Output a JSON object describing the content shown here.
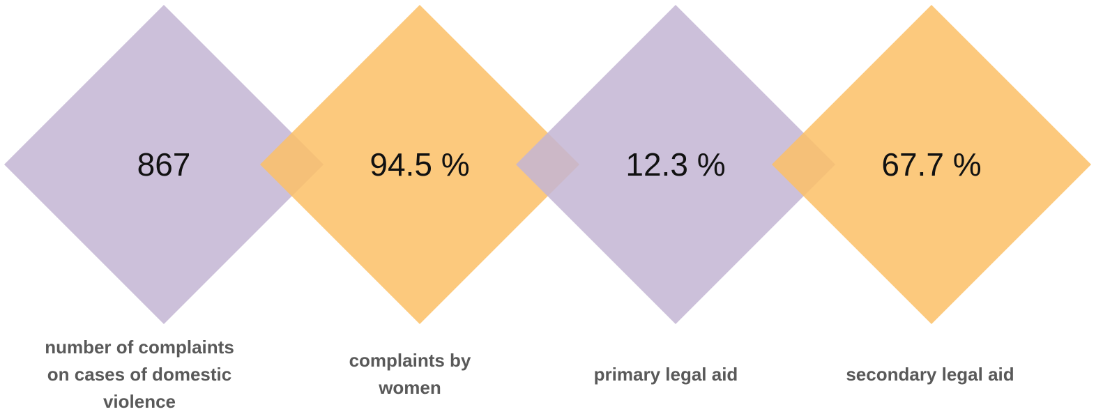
{
  "items": [
    {
      "value": "867",
      "caption": "number of complaints on cases of domestic violence"
    },
    {
      "value": "94.5 %",
      "caption": "complaints by women"
    },
    {
      "value": "12.3 %",
      "caption": "primary legal aid"
    },
    {
      "value": "67.7 %",
      "caption": "secondary legal aid"
    }
  ]
}
